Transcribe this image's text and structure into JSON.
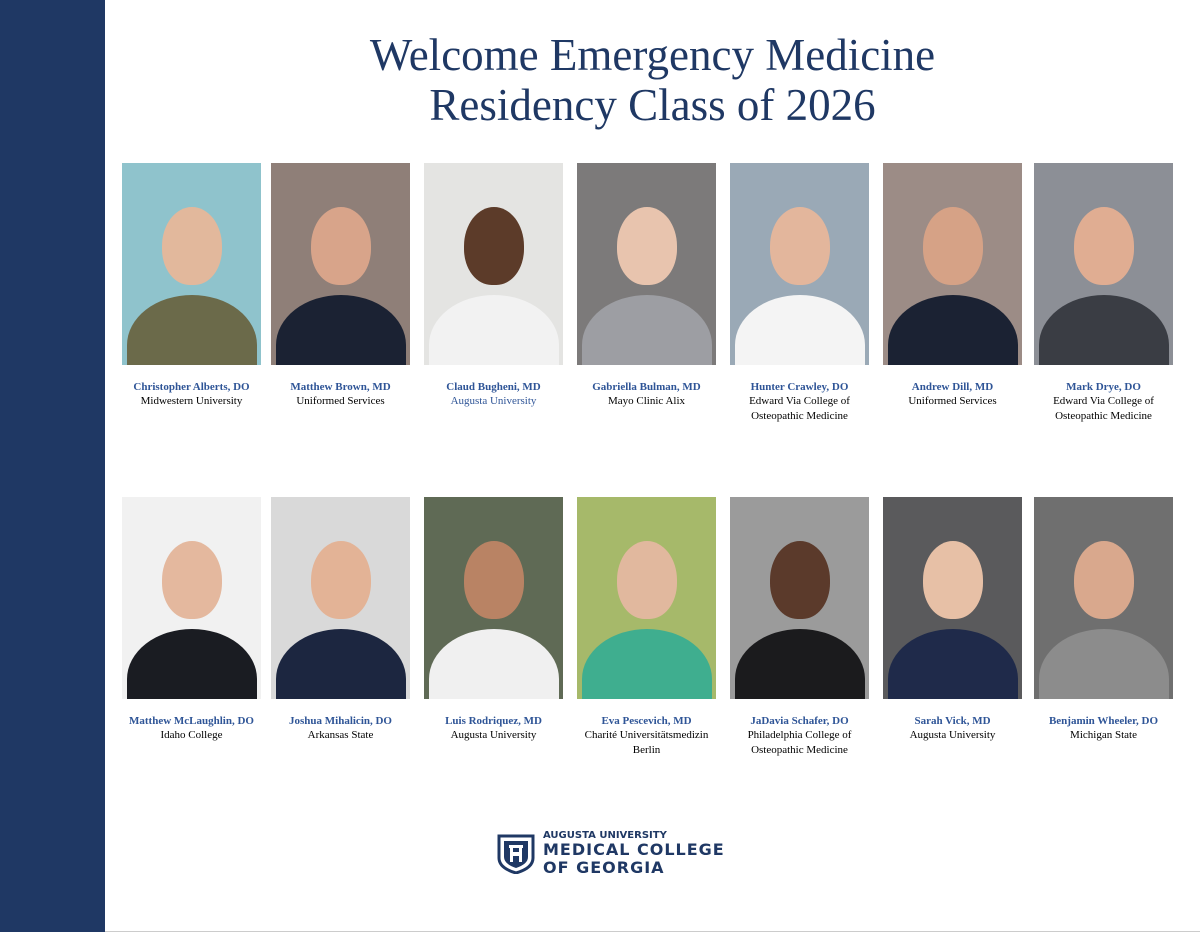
{
  "title": {
    "line1": "Welcome Emergency Medicine",
    "line2": "Residency Class of 2026"
  },
  "colors": {
    "sidebar": "#1f3864",
    "name": "#2f5597"
  },
  "residents": [
    {
      "name": "Christopher Alberts, DO",
      "school": [
        "Midwestern University"
      ],
      "bg": "#8fc3cc",
      "body": "#6b6a4a",
      "skin": "#e2b89c"
    },
    {
      "name": "Matthew Brown, MD",
      "school": [
        "Uniformed Services"
      ],
      "bg": "#8f7f78",
      "body": "#1b2233",
      "skin": "#d8a48a"
    },
    {
      "name": "Claud Bugheni, MD",
      "school": [
        "Augusta University"
      ],
      "school_blue": true,
      "bg": "#e4e4e2",
      "body": "#f2f2f2",
      "skin": "#5c3b29"
    },
    {
      "name": "Gabriella Bulman, MD",
      "school": [
        "Mayo Clinic Alix"
      ],
      "bg": "#7c7a7a",
      "body": "#9d9ea3",
      "skin": "#e8c4ae"
    },
    {
      "name": "Hunter Crawley, DO",
      "school": [
        "Edward Via College of",
        "Osteopathic Medicine"
      ],
      "bg": "#9aa9b6",
      "body": "#f4f4f4",
      "skin": "#e3b69c"
    },
    {
      "name": "Andrew Dill, MD",
      "school": [
        "Uniformed Services"
      ],
      "bg": "#9c8c86",
      "body": "#1b2233",
      "skin": "#d6a286"
    },
    {
      "name": "Mark Drye, DO",
      "school": [
        "Edward Via College of",
        "Osteopathic Medicine"
      ],
      "bg": "#8c8f96",
      "body": "#3a3d44",
      "skin": "#e0ad92"
    },
    {
      "name": "Matthew McLaughlin, DO",
      "school": [
        "Idaho College"
      ],
      "bg": "#f1f1f1",
      "body": "#1a1c22",
      "skin": "#e4b89e"
    },
    {
      "name": "Joshua Mihalicin, DO",
      "school": [
        "Arkansas State"
      ],
      "bg": "#d9d9d9",
      "body": "#1c2640",
      "skin": "#e3b396"
    },
    {
      "name": "Luis Rodriquez, MD",
      "school": [
        "Augusta University"
      ],
      "bg": "#5f6a55",
      "body": "#f0f0f0",
      "skin": "#b98364"
    },
    {
      "name": "Eva Pescevich, MD",
      "school": [
        "Charité Universitätsmedizin",
        "Berlin"
      ],
      "bg": "#a6b96a",
      "body": "#3fae8f",
      "skin": "#e1b89e"
    },
    {
      "name": "JaDavia Schafer, DO",
      "school": [
        "Philadelphia College of",
        "Osteopathic Medicine"
      ],
      "bg": "#9b9b9b",
      "body": "#1b1b1d",
      "skin": "#5b3a2b"
    },
    {
      "name": "Sarah Vick, MD",
      "school": [
        "Augusta University"
      ],
      "bg": "#5a5a5c",
      "body": "#1f2a4a",
      "skin": "#e7c0a6"
    },
    {
      "name": "Benjamin Wheeler, DO",
      "school": [
        "Michigan State"
      ],
      "bg": "#6f6f6f",
      "body": "#8c8c8c",
      "skin": "#d9a88d"
    }
  ],
  "logo": {
    "line1": "AUGUSTA UNIVERSITY",
    "line2": "MEDICAL COLLEGE",
    "line3": "OF GEORGIA"
  }
}
